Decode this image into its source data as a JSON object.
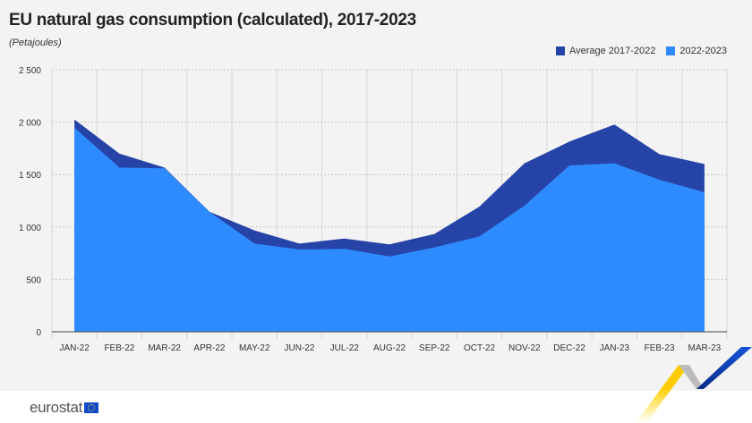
{
  "title": "EU natural gas consumption (calculated), 2017-2023",
  "subtitle": "(Petajoules)",
  "brand": "eurostat",
  "chart_data": {
    "type": "area",
    "title": "EU natural gas consumption (calculated), 2017-2023",
    "ylabel": "(Petajoules)",
    "categories": [
      "JAN-22",
      "FEB-22",
      "MAR-22",
      "APR-22",
      "MAY-22",
      "JUN-22",
      "JUL-22",
      "AUG-22",
      "SEP-22",
      "OCT-22",
      "NOV-22",
      "DEC-22",
      "JAN-23",
      "FEB-23",
      "MAR-23"
    ],
    "ylim": [
      0,
      2500
    ],
    "yticks": [
      0,
      500,
      1000,
      1500,
      2000,
      2500
    ],
    "ytick_labels": [
      "0",
      "500",
      "1 000",
      "1 500",
      "2 000",
      "2 500"
    ],
    "grid": true,
    "legend_position": "top-right",
    "series": [
      {
        "name": "Average 2017-2022",
        "color": "#2644a7",
        "values": [
          2025,
          1700,
          1567,
          1146,
          967,
          842,
          890,
          834,
          933,
          1195,
          1607,
          1815,
          1977,
          1695,
          1601
        ]
      },
      {
        "name": "2022-2023",
        "color": "#2e8bff",
        "values": [
          1948,
          1567,
          1559,
          1146,
          842,
          785,
          791,
          719,
          805,
          910,
          1203,
          1587,
          1607,
          1451,
          1331
        ]
      }
    ]
  }
}
